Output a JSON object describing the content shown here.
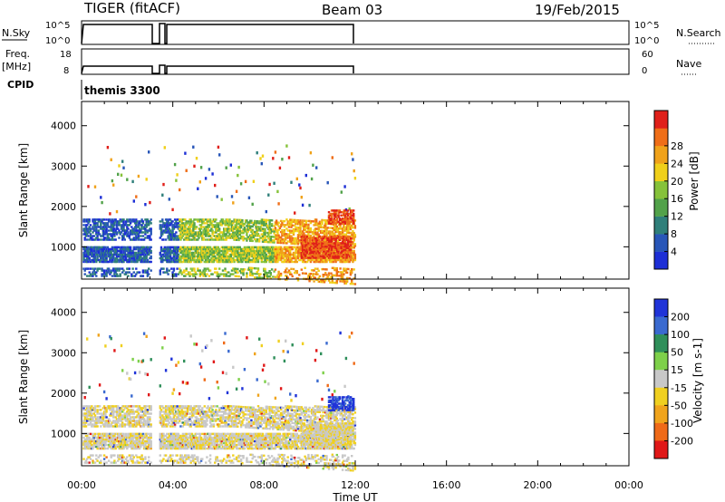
{
  "header": {
    "station": "TIGER (fitACF)",
    "beam": "Beam 03",
    "date": "19/Feb/2015"
  },
  "strips": {
    "nsky_label": "N.Sky",
    "nsky_ticks": [
      "10^5",
      "10^0"
    ],
    "nsearch_label": "N.Search",
    "nsearch_ticks": [
      "10^5",
      "10^0"
    ],
    "freq_label": "Freq.",
    "freq_unit": "[MHz]",
    "freq_ticks": [
      "18",
      "8"
    ],
    "nave_label": "Nave",
    "nave_ticks": [
      "60",
      "0"
    ],
    "cpid_label": "CPID",
    "cpid_value": "themis 3300"
  },
  "chart_data": [
    {
      "type": "heatmap",
      "name": "power",
      "ylabel": "Slant Range [km]",
      "yticks": [
        "1000",
        "2000",
        "3000",
        "4000"
      ],
      "ylim": [
        200,
        4600
      ],
      "xlim": [
        0,
        24
      ],
      "colorbar_label": "Power [dB]",
      "colorbar_ticks": [
        "4",
        "8",
        "12",
        "16",
        "20",
        "24",
        "28"
      ],
      "colorbar_colors": [
        "#1d2fd6",
        "#2856b8",
        "#2f7f7a",
        "#52a24a",
        "#86c23a",
        "#f0d01a",
        "#f0a21a",
        "#ef6e18",
        "#e0201a"
      ],
      "data_gap_hours": [
        [
          3.0,
          3.35
        ]
      ],
      "data_end_hour": 12.0
    },
    {
      "type": "heatmap",
      "name": "velocity",
      "ylabel": "Slant Range [km]",
      "yticks": [
        "1000",
        "2000",
        "3000",
        "4000"
      ],
      "ylim": [
        200,
        4600
      ],
      "xlim": [
        0,
        24
      ],
      "colorbar_label": "Velocity [m s-1]",
      "colorbar_ticks": [
        "200",
        "100",
        "50",
        "15",
        "-15",
        "-50",
        "-100",
        "-200"
      ],
      "colorbar_colors": [
        "#2034d8",
        "#3a6ad0",
        "#2f8f5a",
        "#7ed04a",
        "#c8c8c8",
        "#f0d020",
        "#f0a41c",
        "#ef6a18",
        "#e01818"
      ],
      "data_gap_hours": [
        [
          3.0,
          3.35
        ]
      ],
      "data_end_hour": 12.0
    }
  ],
  "xaxis": {
    "ticks": [
      "00:00",
      "04:00",
      "08:00",
      "12:00",
      "16:00",
      "20:00",
      "00:00"
    ],
    "label": "Time UT"
  }
}
